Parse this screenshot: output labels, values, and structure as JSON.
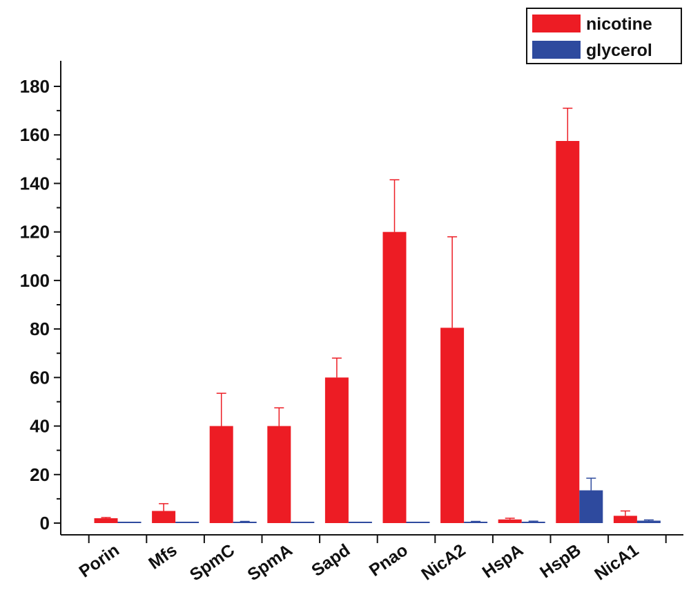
{
  "chart_data": {
    "type": "bar",
    "categories": [
      "Porin",
      "Mfs",
      "SpmC",
      "SpmA",
      "Sapd",
      "Pnao",
      "NicA2",
      "HspA",
      "HspB",
      "NicA1"
    ],
    "series": [
      {
        "name": "nicotine",
        "color": "#ED1C24",
        "values": [
          2,
          5,
          40,
          40,
          60,
          120,
          80.5,
          1.5,
          157.5,
          3
        ],
        "errors": [
          0.3,
          3,
          13.5,
          7.5,
          8,
          21.5,
          37.5,
          0.5,
          13.5,
          2
        ]
      },
      {
        "name": "glycerol",
        "color": "#2E4A9E",
        "values": [
          0,
          0,
          0.5,
          0,
          0,
          0,
          0.5,
          0.5,
          13.5,
          1
        ],
        "errors": [
          0,
          0,
          0.2,
          0,
          0,
          0,
          0.2,
          0.3,
          5,
          0.3
        ]
      }
    ],
    "title": "",
    "xlabel": "",
    "ylabel": "",
    "ylim": [
      -5,
      190
    ],
    "yticks": [
      "0",
      "20",
      "40",
      "60",
      "80",
      "100",
      "120",
      "140",
      "160",
      "180"
    ],
    "legend_position": "top-right",
    "grid": false
  }
}
